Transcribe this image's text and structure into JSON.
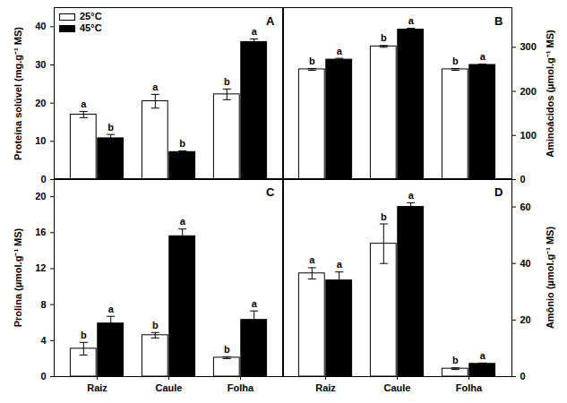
{
  "chart_data": [
    {
      "type": "bar",
      "title": "A",
      "ylabel": "Proteína solúvel (mg.g⁻¹ MS)",
      "categories": [
        "Raiz",
        "Caule",
        "Folha"
      ],
      "ylim": [
        0,
        45
      ],
      "yticks": [
        0,
        10,
        20,
        30,
        40
      ],
      "tick_labels": "y",
      "legend": "top-left",
      "series": [
        {
          "name": "25°C",
          "color": "#ffffff",
          "values": [
            17,
            20.5,
            22.3
          ],
          "errors": [
            0.8,
            1.8,
            1.4
          ],
          "letters": [
            "a",
            "a",
            "b"
          ]
        },
        {
          "name": "45°C",
          "color": "#000000",
          "values": [
            10.8,
            7.2,
            36
          ],
          "errors": [
            1.0,
            0.3,
            0.8
          ],
          "letters": [
            "b",
            "b",
            "a"
          ]
        }
      ]
    },
    {
      "type": "bar",
      "title": "B",
      "ylabel": "Aminoácidos (µmol.g⁻¹ MS)",
      "categories": [
        "Raiz",
        "Caule",
        "Folha"
      ],
      "ylim": [
        0,
        390
      ],
      "yticks": [
        0,
        100,
        200,
        300
      ],
      "tick_labels": "y",
      "series": [
        {
          "name": "25°C",
          "color": "#ffffff",
          "values": [
            250,
            302,
            250
          ],
          "errors": [
            2,
            2,
            2
          ],
          "letters": [
            "b",
            "b",
            "b"
          ]
        },
        {
          "name": "45°C",
          "color": "#000000",
          "values": [
            272,
            340,
            260
          ],
          "errors": [
            3,
            3,
            2
          ],
          "letters": [
            "a",
            "a",
            "a"
          ]
        }
      ]
    },
    {
      "type": "bar",
      "title": "C",
      "ylabel": "Prolina (µmol.g⁻¹ MS)",
      "categories": [
        "Raiz",
        "Caule",
        "Folha"
      ],
      "ylim": [
        0,
        22
      ],
      "yticks": [
        0,
        4,
        8,
        12,
        16,
        20
      ],
      "series": [
        {
          "name": "25°C",
          "color": "#ffffff",
          "values": [
            3.1,
            4.6,
            2.1
          ],
          "errors": [
            0.7,
            0.3,
            0.1
          ],
          "letters": [
            "b",
            "b",
            "b"
          ]
        },
        {
          "name": "45°C",
          "color": "#000000",
          "values": [
            5.9,
            15.6,
            6.3
          ],
          "errors": [
            0.8,
            0.8,
            1.0
          ],
          "letters": [
            "a",
            "a",
            "a"
          ]
        }
      ]
    },
    {
      "type": "bar",
      "title": "D",
      "ylabel": "Amônio (µmol.g⁻¹ MS)",
      "categories": [
        "Raiz",
        "Caule",
        "Folha"
      ],
      "ylim": [
        0,
        70
      ],
      "yticks": [
        0,
        20,
        40,
        60
      ],
      "series": [
        {
          "name": "25°C",
          "color": "#ffffff",
          "values": [
            36.5,
            47,
            2.8
          ],
          "errors": [
            2,
            7,
            0.3
          ],
          "letters": [
            "a",
            "b",
            "b"
          ]
        },
        {
          "name": "45°C",
          "color": "#000000",
          "values": [
            34,
            60,
            4.5
          ],
          "errors": [
            3,
            1.5,
            0.3
          ],
          "letters": [
            "a",
            "a",
            "a"
          ]
        }
      ]
    }
  ]
}
